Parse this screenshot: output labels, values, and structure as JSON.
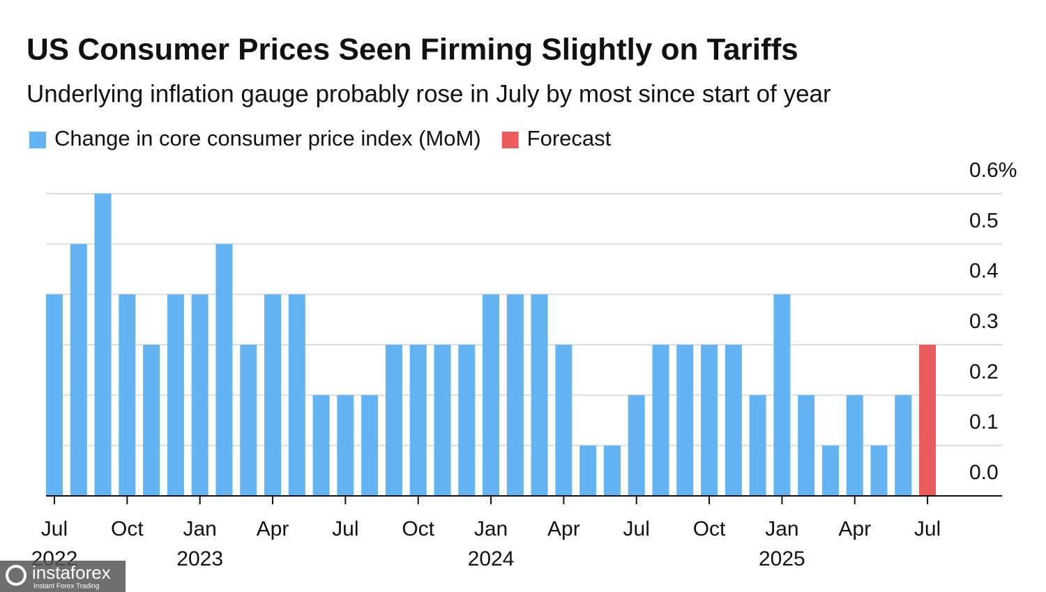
{
  "chart_data": {
    "type": "bar",
    "title": "US Consumer Prices Seen Firming Slightly on Tariffs",
    "subtitle": "Underlying inflation gauge probably rose in July by most since start of year",
    "categories": [
      "Jul 2022",
      null,
      null,
      "Oct",
      null,
      null,
      "Jan 2023",
      null,
      null,
      "Apr",
      null,
      null,
      "Jul",
      null,
      null,
      "Oct",
      null,
      null,
      "Jan 2024",
      null,
      null,
      "Apr",
      null,
      null,
      "Jul",
      null,
      null,
      "Oct",
      null,
      null,
      "Jan 2025",
      null,
      null,
      "Apr",
      null,
      null,
      "Jul"
    ],
    "series": [
      {
        "name": "Change in core consumer price index (MoM)",
        "color": "#64b4f4",
        "values": [
          0.4,
          0.5,
          0.6,
          0.4,
          0.3,
          0.4,
          0.4,
          0.5,
          0.3,
          0.4,
          0.4,
          0.2,
          0.2,
          0.2,
          0.3,
          0.3,
          0.3,
          0.3,
          0.4,
          0.4,
          0.4,
          0.3,
          0.1,
          0.1,
          0.2,
          0.3,
          0.3,
          0.3,
          0.3,
          0.2,
          0.4,
          0.2,
          0.1,
          0.2,
          0.1,
          0.2,
          null
        ]
      },
      {
        "name": "Forecast",
        "color": "#eb5c5c",
        "values": [
          null,
          null,
          null,
          null,
          null,
          null,
          null,
          null,
          null,
          null,
          null,
          null,
          null,
          null,
          null,
          null,
          null,
          null,
          null,
          null,
          null,
          null,
          null,
          null,
          null,
          null,
          null,
          null,
          null,
          null,
          null,
          null,
          null,
          null,
          null,
          null,
          0.3
        ]
      }
    ],
    "ylim": [
      0,
      0.6
    ],
    "yticks": [
      {
        "value": 0,
        "label": "0.0"
      },
      0.1,
      0.2,
      0.3,
      0.4,
      0.5,
      {
        "value": 0.6,
        "label": "0.6%"
      }
    ],
    "grid": true,
    "watermark": {
      "brand": "instaforex",
      "tagline": "Instant Forex Trading"
    }
  }
}
